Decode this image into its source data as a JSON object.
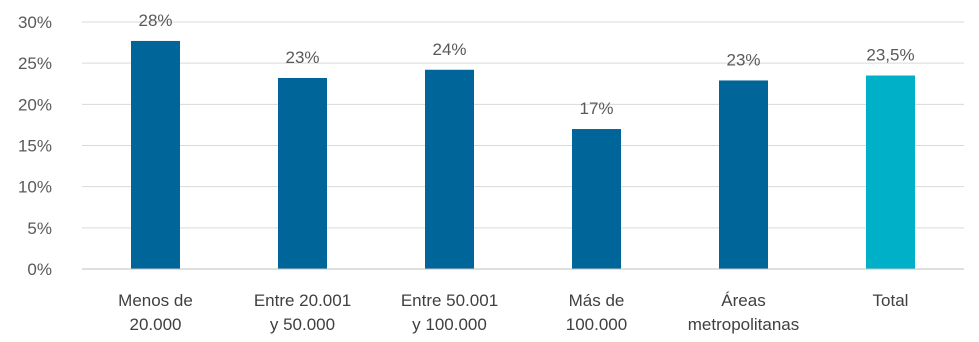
{
  "chart_data": {
    "type": "bar",
    "categories": [
      [
        "Menos de",
        "20.000"
      ],
      [
        "Entre 20.001",
        "y 50.000"
      ],
      [
        "Entre 50.001",
        "y 100.000"
      ],
      [
        "Más de",
        "100.000"
      ],
      [
        "Áreas",
        "metropolitanas"
      ],
      [
        "Total"
      ]
    ],
    "values": [
      27.7,
      23.2,
      24.2,
      17.0,
      22.9,
      23.5
    ],
    "data_labels": [
      "28%",
      "23%",
      "24%",
      "17%",
      "23%",
      "23,5%"
    ],
    "ylim": [
      0,
      30
    ],
    "yticks": [
      0,
      5,
      10,
      15,
      20,
      25,
      30
    ],
    "ytick_labels": [
      "0%",
      "5%",
      "10%",
      "15%",
      "20%",
      "25%",
      "30%"
    ],
    "grid": true,
    "colors": {
      "bar": "#006699",
      "highlight_bar": "#00b0c8",
      "grid": "#d9d9d9",
      "axis": "#bfbfbf"
    },
    "highlight_index": 5
  }
}
